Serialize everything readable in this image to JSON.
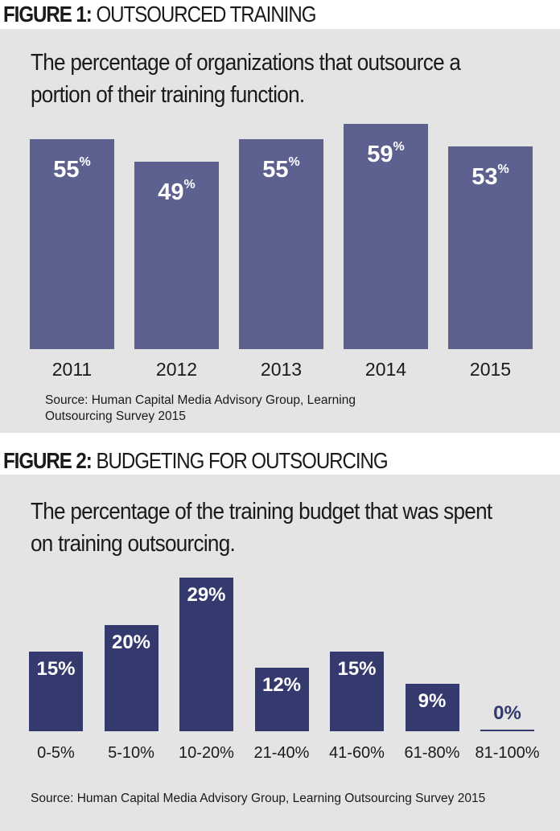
{
  "figure1": {
    "heading_num": "FIGURE 1:",
    "heading_name": "OUTSOURCED TRAINING",
    "subtitle": "The percentage of organizations that outsource a portion of their training function.",
    "source": "Source: Human Capital Media Advisory Group, Learning Outsourcing Survey 2015",
    "chart_data": {
      "type": "bar",
      "categories": [
        "2011",
        "2012",
        "2013",
        "2014",
        "2015"
      ],
      "values": [
        55,
        49,
        55,
        59,
        53
      ],
      "value_suffix": "%",
      "ylim": [
        0,
        59
      ],
      "grid": false,
      "bar_color": "#5d6190"
    }
  },
  "figure2": {
    "heading_num": "FIGURE 2:",
    "heading_name": "BUDGETING FOR OUTSOURCING",
    "subtitle": "The percentage of the training budget that was spent on training outsourcing.",
    "source": "Source: Human Capital Media Advisory Group, Learning Outsourcing Survey 2015",
    "chart_data": {
      "type": "bar",
      "categories": [
        "0-5%",
        "5-10%",
        "10-20%",
        "21-40%",
        "41-60%",
        "61-80%",
        "81-100%"
      ],
      "values": [
        15,
        20,
        29,
        12,
        15,
        9,
        0
      ],
      "value_suffix": "%",
      "ylim": [
        0,
        29
      ],
      "grid": false,
      "bar_color": "#343a6e"
    }
  },
  "colors": {
    "panel_background": "#e4e4e4",
    "text": "#1a1a1a",
    "value_label": "#ffffff"
  }
}
